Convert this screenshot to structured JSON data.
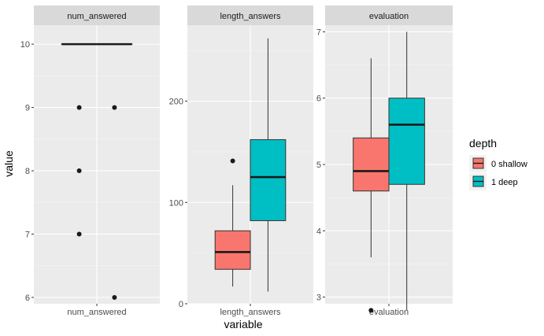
{
  "chart_data": {
    "type": "boxplot",
    "xlabel": "variable",
    "ylabel": "value",
    "legend": {
      "title": "depth",
      "placement": "right",
      "entries": [
        {
          "label": "0 shallow",
          "color": "#F8766D"
        },
        {
          "label": "1 deep",
          "color": "#00BFC4"
        }
      ]
    },
    "grid": true,
    "facets": [
      {
        "strip": "num_answered",
        "x_tick": "num_answered",
        "ylim": [
          5.9,
          10.3
        ],
        "y_ticks": [
          6,
          7,
          8,
          9,
          10
        ],
        "y_tick_labels": [
          "6",
          "7",
          "8",
          "9",
          "10"
        ],
        "boxes": [
          {
            "group": "0 shallow",
            "min": 10,
            "q1": 10,
            "median": 10,
            "q3": 10,
            "max": 10,
            "outliers": [
              9,
              8,
              7
            ]
          },
          {
            "group": "1 deep",
            "min": 10,
            "q1": 10,
            "median": 10,
            "q3": 10,
            "max": 10,
            "outliers": [
              9,
              6
            ]
          }
        ]
      },
      {
        "strip": "length_answers",
        "x_tick": "length_answers",
        "ylim": [
          0,
          275
        ],
        "y_ticks": [
          0,
          100,
          200
        ],
        "y_tick_labels": [
          "0",
          "100",
          "200"
        ],
        "boxes": [
          {
            "group": "0 shallow",
            "min": 17,
            "q1": 34,
            "median": 51,
            "q3": 72,
            "max": 117,
            "outliers": [
              141
            ]
          },
          {
            "group": "1 deep",
            "min": 12,
            "q1": 82,
            "median": 125,
            "q3": 162,
            "max": 262,
            "outliers": []
          }
        ]
      },
      {
        "strip": "evaluation",
        "x_tick": "evaluation",
        "ylim": [
          2.9,
          7.1
        ],
        "y_ticks": [
          3,
          4,
          5,
          6,
          7
        ],
        "y_tick_labels": [
          "3",
          "4",
          "5",
          "6",
          "7"
        ],
        "boxes": [
          {
            "group": "0 shallow",
            "min": 3.6,
            "q1": 4.6,
            "median": 4.9,
            "q3": 5.4,
            "max": 6.6,
            "outliers": [
              2.8
            ]
          },
          {
            "group": "1 deep",
            "min": 2.8,
            "q1": 4.7,
            "median": 5.6,
            "q3": 6.0,
            "max": 7.0,
            "outliers": []
          }
        ]
      }
    ]
  }
}
